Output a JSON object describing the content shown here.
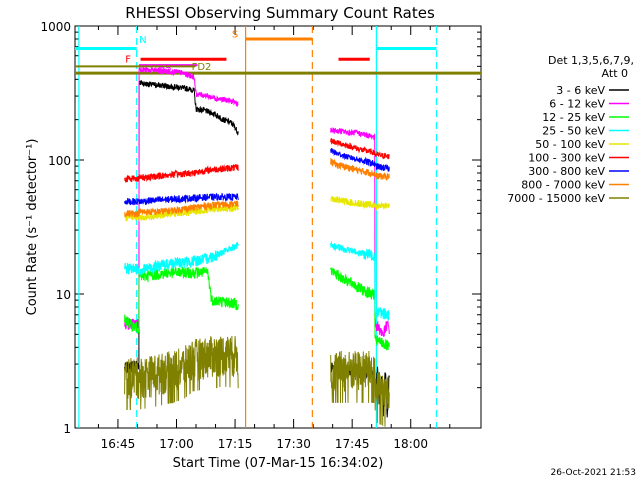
{
  "chart_data": {
    "type": "line",
    "title": "RHESSI Observing Summary Count Rates",
    "xlabel": "Start Time (07-Mar-15 16:34:02)",
    "ylabel": "Count Rate (s⁻¹ detector⁻¹)",
    "timestamp": "26-Oct-2021 21:53",
    "x_unit": "minutes after 16:34",
    "xlim": [
      0,
      104
    ],
    "ylim": [
      1,
      1000
    ],
    "yscale": "log",
    "xticks": [
      {
        "t": 11,
        "label": "16:45"
      },
      {
        "t": 26,
        "label": "17:00"
      },
      {
        "t": 41,
        "label": "17:15"
      },
      {
        "t": 56,
        "label": "17:30"
      },
      {
        "t": 71,
        "label": "17:45"
      },
      {
        "t": 86,
        "label": "18:00"
      }
    ],
    "yticks": [
      {
        "v": 1,
        "label": "1"
      },
      {
        "v": 10,
        "label": "10"
      },
      {
        "v": 100,
        "label": "100"
      },
      {
        "v": 1000,
        "label": "1000"
      }
    ],
    "legend": {
      "title_lines": [
        "Det 1,3,5,6,7,9,",
        "Att 0"
      ],
      "placement": "right"
    },
    "series": [
      {
        "name": "3 - 6 keV",
        "color": "#000000",
        "segments": [
          {
            "t": [
              12.7,
              16.4,
              16.6,
              18,
              22,
              26,
              29,
              30.5,
              31,
              33,
              35,
              37,
              38,
              40,
              41,
              41.8
            ],
            "v": [
              2.8,
              3.0,
              380,
              370,
              360,
              350,
              340,
              330,
              240,
              235,
              225,
              210,
              200,
              190,
              175,
              160
            ]
          },
          {
            "t": [
              65.5,
              67,
              70,
              73,
              76,
              76.8,
              77,
              77.5,
              78,
              78.5,
              79,
              79.5,
              80,
              80.5
            ],
            "v": [
              2.8,
              2.8,
              2.7,
              2.6,
              2.6,
              2.6,
              1.8,
              2.8,
              1.5,
              2.5,
              1.3,
              2.8,
              1.2,
              2.6
            ]
          }
        ]
      },
      {
        "name": "6 - 12 keV",
        "color": "#ff00ff",
        "segments": [
          {
            "t": [
              12.7,
              16.4,
              16.6,
              18,
              21,
              24,
              27,
              29,
              30.5,
              31,
              33,
              35,
              37,
              39,
              41,
              41.8
            ],
            "v": [
              6.0,
              6.0,
              480,
              470,
              465,
              460,
              450,
              430,
              420,
              310,
              305,
              295,
              285,
              280,
              270,
              260
            ]
          },
          {
            "t": [
              65.5,
              68,
              70,
              72,
              74,
              76,
              76.8,
              77,
              78,
              79,
              80,
              80.5
            ],
            "v": [
              165,
              165,
              160,
              160,
              155,
              150,
              150,
              6.0,
              5.5,
              5.0,
              6.0,
              5.5
            ]
          }
        ]
      },
      {
        "name": "12 - 25 keV",
        "color": "#00ff00",
        "segments": [
          {
            "t": [
              12.7,
              14,
              16.4,
              16.6,
              20,
              25,
              30,
              34,
              35,
              38,
              41,
              41.8
            ],
            "v": [
              6.5,
              6.0,
              5.5,
              13.5,
              14.0,
              14.5,
              14.5,
              14.5,
              9.0,
              8.8,
              8.5,
              8.3
            ]
          },
          {
            "t": [
              65.5,
              67,
              70,
              73,
              76,
              76.8,
              77,
              79,
              80.5
            ],
            "v": [
              15.0,
              14.0,
              12.5,
              11.0,
              10.0,
              10.0,
              4.5,
              4.3,
              4.0
            ]
          }
        ]
      },
      {
        "name": "25 - 50 keV",
        "color": "#00ffff",
        "segments": [
          {
            "t": [
              12.7,
              16.4,
              16.6,
              20,
              25,
              30,
              34,
              37,
              40,
              41.8
            ],
            "v": [
              15.5,
              15.5,
              15.0,
              16.0,
              17.0,
              17.5,
              18.5,
              20.0,
              22.0,
              23.0
            ]
          },
          {
            "t": [
              65.5,
              68,
              71,
              74,
              76.8,
              77,
              80.5
            ],
            "v": [
              23.0,
              22.0,
              21.0,
              20.0,
              19.5,
              7.5,
              7.0
            ]
          }
        ]
      },
      {
        "name": "50 - 100 keV",
        "color": "#e6e600",
        "segments": [
          {
            "t": [
              12.7,
              16.4,
              16.6,
              20,
              25,
              30,
              35,
              41.8
            ],
            "v": [
              37,
              38,
              37,
              38,
              40,
              41,
              43,
              44
            ]
          },
          {
            "t": [
              65.5,
              68,
              71,
              74,
              76.8,
              77,
              80.5
            ],
            "v": [
              52,
              50,
              48,
              47,
              46,
              45,
              46
            ]
          }
        ]
      },
      {
        "name": "100 - 300 keV",
        "color": "#ff0000",
        "segments": [
          {
            "t": [
              12.7,
              14,
              16.4,
              16.6,
              20,
              25,
              30,
              35,
              41.8
            ],
            "v": [
              72,
              73,
              73,
              74,
              75,
              78,
              80,
              85,
              88
            ]
          },
          {
            "t": [
              65.5,
              67,
              70,
              73,
              76,
              76.8,
              77,
              80.5
            ],
            "v": [
              140,
              135,
              128,
              120,
              115,
              113,
              110,
              106
            ]
          }
        ]
      },
      {
        "name": "300 - 800 keV",
        "color": "#0000ff",
        "segments": [
          {
            "t": [
              12.7,
              16.4,
              16.6,
              20,
              25,
              30,
              35,
              41.8
            ],
            "v": [
              49,
              49,
              49,
              50,
              51,
              52,
              53,
              53
            ]
          },
          {
            "t": [
              65.5,
              67,
              70,
              73,
              76,
              76.8,
              77,
              80.5
            ],
            "v": [
              118,
              112,
              105,
              100,
              95,
              93,
              90,
              86
            ]
          }
        ]
      },
      {
        "name": "800 - 7000 keV",
        "color": "#ff8000",
        "segments": [
          {
            "t": [
              12.7,
              16.4,
              16.6,
              20,
              25,
              30,
              35,
              41.8
            ],
            "v": [
              40,
              40,
              41,
              41,
              42,
              44,
              46,
              47
            ]
          },
          {
            "t": [
              65.5,
              67,
              70,
              73,
              76,
              76.8,
              77,
              80.5
            ],
            "v": [
              98,
              92,
              88,
              83,
              80,
              79,
              76,
              75
            ]
          }
        ]
      },
      {
        "name": "7000 - 15000 keV",
        "color": "#808000",
        "segments": [
          {
            "t": [
              12.7,
              16.4,
              16.6,
              20,
              25,
              28,
              30,
              35,
              38,
              41.8
            ],
            "v": [
              2.5,
              2.5,
              2.5,
              2.6,
              2.8,
              3.0,
              3.4,
              3.6,
              3.7,
              3.6
            ]
          },
          {
            "t": [
              65.5,
              68,
              71,
              74,
              76.8,
              77,
              80.5
            ],
            "v": [
              2.8,
              2.8,
              2.8,
              2.8,
              2.8,
              2.0,
              1.8
            ]
          }
        ]
      }
    ],
    "markers": {
      "vlines": [
        {
          "t": 1.0,
          "color": "#00ffff",
          "dash": false
        },
        {
          "t": 15.8,
          "color": "#00ffff",
          "dash": true
        },
        {
          "t": 43.7,
          "color": "#ff8000",
          "dash": false
        },
        {
          "t": 60.8,
          "color": "#ff8000",
          "dash": true
        },
        {
          "t": 77.2,
          "color": "#00ffff",
          "dash": false
        },
        {
          "t": 92.6,
          "color": "#00ffff",
          "dash": true
        }
      ],
      "hbars": [
        {
          "t0": 0,
          "t1": 15.8,
          "v": 680,
          "color": "#00ffff",
          "width": 3
        },
        {
          "t0": 77.2,
          "t1": 92.6,
          "v": 680,
          "color": "#00ffff",
          "width": 3
        },
        {
          "t0": 43.7,
          "t1": 60.8,
          "v": 800,
          "color": "#ff8000",
          "width": 3
        },
        {
          "t0": 16.8,
          "t1": 38.8,
          "v": 565,
          "color": "#ff0000",
          "width": 3
        },
        {
          "t0": 67.5,
          "t1": 75.5,
          "v": 565,
          "color": "#ff0000",
          "width": 3
        },
        {
          "t0": 16.4,
          "t1": 31.4,
          "v": 510,
          "color": "#ff00ff",
          "width": 2
        },
        {
          "t0": 0,
          "t1": 104,
          "v": 445,
          "color": "#808000",
          "width": 3
        },
        {
          "t0": 0,
          "t1": 30.8,
          "v": 500,
          "color": "#808000",
          "width": 2
        }
      ],
      "labels": [
        {
          "text": "N",
          "t": 17.4,
          "v": 800,
          "color": "#00ffff"
        },
        {
          "text": "S",
          "t": 41.0,
          "v": 880,
          "color": "#ff8000"
        },
        {
          "text": "F",
          "t": 13.6,
          "v": 570,
          "color": "#ff0000"
        },
        {
          "text": "FD2",
          "t": 32.4,
          "v": 505,
          "color": "#808000"
        },
        {
          "text": "D2",
          "t": 23.0,
          "v": 470,
          "color": "#ff00ff"
        }
      ]
    }
  }
}
